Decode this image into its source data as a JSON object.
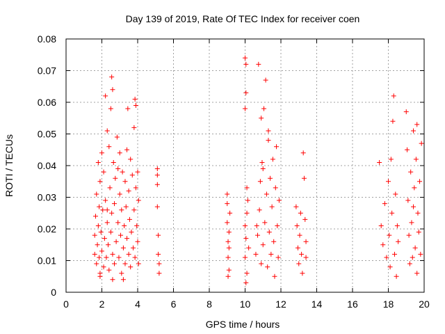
{
  "chart_data": {
    "type": "scatter",
    "title": "Day 139 of 2019, Rate Of TEC Index for receiver coen",
    "xlabel": "GPS time / hours",
    "ylabel": "ROTI / TECUs",
    "xlim": [
      0,
      20
    ],
    "ylim": [
      0,
      0.08
    ],
    "grid": true,
    "marker": "+",
    "color": "#ff0000",
    "x_ticks": [
      0,
      2,
      4,
      6,
      8,
      10,
      12,
      14,
      16,
      18,
      20
    ],
    "x_tick_labels": [
      "0",
      "2",
      "4",
      "6",
      "8",
      "10",
      "12",
      "14",
      "16",
      "18",
      "20"
    ],
    "y_ticks": [
      0,
      0.01,
      0.02,
      0.03,
      0.04,
      0.05,
      0.06,
      0.07,
      0.08
    ],
    "y_tick_labels": [
      "0",
      "0.01",
      "0.02",
      "0.03",
      "0.04",
      "0.05",
      "0.06",
      "0.07",
      "0.08"
    ],
    "series": [
      {
        "name": "ROTI",
        "points": [
          [
            1.6,
            0.012
          ],
          [
            1.6,
            0.018
          ],
          [
            1.65,
            0.024
          ],
          [
            1.7,
            0.009
          ],
          [
            1.7,
            0.031
          ],
          [
            1.75,
            0.015
          ],
          [
            1.8,
            0.021
          ],
          [
            1.8,
            0.041
          ],
          [
            1.85,
            0.011
          ],
          [
            1.85,
            0.027
          ],
          [
            1.9,
            0.006
          ],
          [
            1.9,
            0.035
          ],
          [
            1.95,
            0.019
          ],
          [
            2.0,
            0.013
          ],
          [
            2.0,
            0.044
          ],
          [
            2.05,
            0.026
          ],
          [
            2.1,
            0.008
          ],
          [
            2.1,
            0.038
          ],
          [
            2.15,
            0.017
          ],
          [
            2.2,
            0.062
          ],
          [
            2.2,
            0.029
          ],
          [
            2.25,
            0.011
          ],
          [
            2.3,
            0.051
          ],
          [
            2.3,
            0.022
          ],
          [
            2.35,
            0.015
          ],
          [
            2.4,
            0.046
          ],
          [
            2.4,
            0.007
          ],
          [
            2.45,
            0.033
          ],
          [
            2.5,
            0.058
          ],
          [
            2.5,
            0.019
          ],
          [
            2.55,
            0.068
          ],
          [
            2.55,
            0.025
          ],
          [
            2.6,
            0.012
          ],
          [
            2.6,
            0.064
          ],
          [
            2.65,
            0.041
          ],
          [
            2.7,
            0.009
          ],
          [
            2.7,
            0.028
          ],
          [
            2.75,
            0.036
          ],
          [
            2.8,
            0.016
          ],
          [
            2.85,
            0.049
          ],
          [
            2.9,
            0.022
          ],
          [
            2.95,
            0.011
          ],
          [
            3.0,
            0.031
          ],
          [
            3.0,
            0.044
          ],
          [
            3.05,
            0.018
          ],
          [
            3.1,
            0.006
          ],
          [
            3.1,
            0.026
          ],
          [
            3.15,
            0.038
          ],
          [
            3.2,
            0.014
          ],
          [
            3.25,
            0.021
          ],
          [
            3.3,
            0.035
          ],
          [
            3.3,
            0.009
          ],
          [
            3.35,
            0.027
          ],
          [
            3.4,
            0.045
          ],
          [
            3.4,
            0.017
          ],
          [
            3.45,
            0.058
          ],
          [
            3.5,
            0.012
          ],
          [
            3.5,
            0.032
          ],
          [
            3.55,
            0.023
          ],
          [
            3.6,
            0.042
          ],
          [
            3.6,
            0.008
          ],
          [
            3.65,
            0.019
          ],
          [
            3.7,
            0.037
          ],
          [
            3.75,
            0.014
          ],
          [
            3.8,
            0.052
          ],
          [
            3.8,
            0.026
          ],
          [
            3.85,
            0.011
          ],
          [
            3.9,
            0.033
          ],
          [
            3.9,
            0.059
          ],
          [
            3.95,
            0.021
          ],
          [
            4.0,
            0.016
          ],
          [
            4.0,
            0.038
          ],
          [
            4.05,
            0.029
          ],
          [
            4.05,
            0.009
          ],
          [
            3.85,
            0.061
          ],
          [
            1.9,
            0.005
          ],
          [
            2.6,
            0.004
          ],
          [
            3.2,
            0.004
          ],
          [
            2.3,
            0.026
          ],
          [
            2.9,
            0.039
          ],
          [
            5.1,
            0.039
          ],
          [
            5.1,
            0.034
          ],
          [
            5.1,
            0.027
          ],
          [
            5.15,
            0.018
          ],
          [
            5.15,
            0.012
          ],
          [
            5.2,
            0.009
          ],
          [
            5.2,
            0.006
          ],
          [
            5.1,
            0.037
          ],
          [
            9.0,
            0.028
          ],
          [
            9.0,
            0.022
          ],
          [
            9.05,
            0.016
          ],
          [
            9.05,
            0.011
          ],
          [
            9.1,
            0.007
          ],
          [
            9.1,
            0.019
          ],
          [
            9.15,
            0.025
          ],
          [
            9.0,
            0.031
          ],
          [
            9.05,
            0.005
          ],
          [
            9.1,
            0.014
          ],
          [
            10.0,
            0.074
          ],
          [
            10.05,
            0.072
          ],
          [
            10.05,
            0.063
          ],
          [
            10.0,
            0.058
          ],
          [
            10.1,
            0.033
          ],
          [
            10.1,
            0.025
          ],
          [
            10.05,
            0.017
          ],
          [
            10.0,
            0.011
          ],
          [
            10.1,
            0.006
          ],
          [
            10.05,
            0.003
          ],
          [
            10.15,
            0.029
          ],
          [
            10.2,
            0.014
          ],
          [
            10.0,
            0.021
          ],
          [
            10.6,
            0.012
          ],
          [
            10.65,
            0.021
          ],
          [
            10.7,
            0.018
          ],
          [
            10.75,
            0.072
          ],
          [
            10.8,
            0.026
          ],
          [
            10.85,
            0.035
          ],
          [
            10.9,
            0.009
          ],
          [
            10.95,
            0.041
          ],
          [
            11.0,
            0.015
          ],
          [
            11.05,
            0.058
          ],
          [
            11.1,
            0.022
          ],
          [
            11.15,
            0.067
          ],
          [
            11.2,
            0.031
          ],
          [
            11.25,
            0.008
          ],
          [
            11.3,
            0.048
          ],
          [
            11.35,
            0.019
          ],
          [
            11.4,
            0.036
          ],
          [
            11.45,
            0.012
          ],
          [
            11.5,
            0.027
          ],
          [
            11.55,
            0.042
          ],
          [
            11.6,
            0.016
          ],
          [
            11.65,
            0.005
          ],
          [
            11.7,
            0.033
          ],
          [
            11.75,
            0.046
          ],
          [
            11.8,
            0.021
          ],
          [
            11.85,
            0.011
          ],
          [
            11.9,
            0.029
          ],
          [
            11.3,
            0.051
          ],
          [
            11.0,
            0.039
          ],
          [
            10.9,
            0.055
          ],
          [
            12.85,
            0.027
          ],
          [
            12.9,
            0.021
          ],
          [
            12.95,
            0.014
          ],
          [
            13.0,
            0.009
          ],
          [
            13.05,
            0.018
          ],
          [
            13.1,
            0.025
          ],
          [
            13.15,
            0.012
          ],
          [
            13.2,
            0.006
          ],
          [
            13.25,
            0.044
          ],
          [
            13.3,
            0.036
          ],
          [
            13.35,
            0.023
          ],
          [
            13.4,
            0.016
          ],
          [
            13.4,
            0.011
          ],
          [
            17.5,
            0.041
          ],
          [
            17.6,
            0.021
          ],
          [
            17.7,
            0.015
          ],
          [
            17.8,
            0.028
          ],
          [
            17.9,
            0.011
          ],
          [
            18.0,
            0.035
          ],
          [
            18.05,
            0.018
          ],
          [
            18.1,
            0.008
          ],
          [
            18.15,
            0.042
          ],
          [
            18.2,
            0.025
          ],
          [
            18.25,
            0.054
          ],
          [
            18.3,
            0.062
          ],
          [
            18.35,
            0.012
          ],
          [
            18.4,
            0.031
          ],
          [
            18.45,
            0.005
          ],
          [
            18.5,
            0.021
          ],
          [
            18.55,
            0.016
          ],
          [
            19.0,
            0.057
          ],
          [
            19.05,
            0.045
          ],
          [
            19.1,
            0.029
          ],
          [
            19.15,
            0.018
          ],
          [
            19.2,
            0.009
          ],
          [
            19.25,
            0.038
          ],
          [
            19.3,
            0.022
          ],
          [
            19.35,
            0.011
          ],
          [
            19.4,
            0.051
          ],
          [
            19.45,
            0.033
          ],
          [
            19.5,
            0.014
          ],
          [
            19.55,
            0.042
          ],
          [
            19.6,
            0.006
          ],
          [
            19.65,
            0.025
          ],
          [
            19.7,
            0.019
          ],
          [
            19.75,
            0.035
          ],
          [
            19.8,
            0.012
          ],
          [
            19.85,
            0.047
          ],
          [
            19.6,
            0.053
          ],
          [
            19.4,
            0.027
          ]
        ]
      }
    ]
  }
}
